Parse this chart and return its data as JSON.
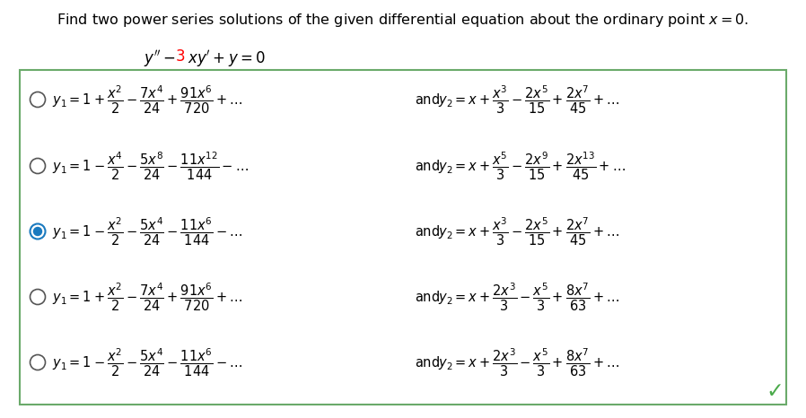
{
  "title": "Find two power series solutions of the given differential equation about the ordinary point $x = 0$.",
  "equation_parts": [
    "$y'' - $",
    "$3$",
    "$xy' + y = 0$"
  ],
  "bg_color": "#ffffff",
  "box_color": "#6aaa6a",
  "options": [
    {
      "selected": false,
      "y1": "$y_1 = 1 + \\dfrac{x^2}{2} - \\dfrac{7x^4}{24} + \\dfrac{91x^6}{720} + \\ldots$",
      "y2": "$y_2 = x + \\dfrac{x^3}{3} - \\dfrac{2x^5}{15} + \\dfrac{2x^7}{45} + \\ldots$"
    },
    {
      "selected": false,
      "y1": "$y_1 = 1 - \\dfrac{x^4}{2} - \\dfrac{5x^8}{24} - \\dfrac{11x^{12}}{144} - \\ldots$",
      "y2": "$y_2 = x + \\dfrac{x^5}{3} - \\dfrac{2x^9}{15} + \\dfrac{2x^{13}}{45} + \\ldots$"
    },
    {
      "selected": true,
      "y1": "$y_1 = 1 - \\dfrac{x^2}{2} - \\dfrac{5x^4}{24} - \\dfrac{11x^6}{144} - \\ldots$",
      "y2": "$y_2 = x + \\dfrac{x^3}{3} - \\dfrac{2x^5}{15} + \\dfrac{2x^7}{45} + \\ldots$"
    },
    {
      "selected": false,
      "y1": "$y_1 = 1 + \\dfrac{x^2}{2} - \\dfrac{7x^4}{24} + \\dfrac{91x^6}{720} + \\ldots$",
      "y2": "$y_2 = x + \\dfrac{2x^3}{3} - \\dfrac{x^5}{3} + \\dfrac{8x^7}{63} + \\ldots$"
    },
    {
      "selected": false,
      "y1": "$y_1 = 1 - \\dfrac{x^2}{2} - \\dfrac{5x^4}{24} - \\dfrac{11x^6}{144} - \\ldots$",
      "y2": "$y_2 = x + \\dfrac{2x^3}{3} - \\dfrac{x^5}{3} + \\dfrac{8x^7}{63} + \\ldots$"
    }
  ],
  "checkmark_color": "#4aaa4a",
  "radio_unsel_color": "#555555",
  "radio_selected_color": "#1a7abf",
  "font_size": 10.5,
  "title_font_size": 11.5,
  "eq_font_size": 12.0
}
